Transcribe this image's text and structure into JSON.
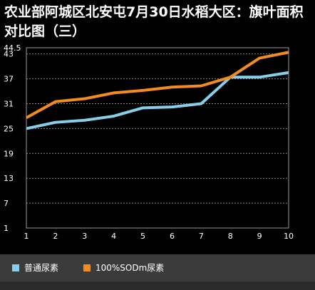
{
  "chart_data": {
    "type": "line",
    "title": "农业部阿城区北安屯7月30日水稻大区：旗叶面积对比图（三）",
    "x": [
      1,
      2,
      3,
      4,
      5,
      6,
      7,
      8,
      9,
      10
    ],
    "y_ticks": [
      1,
      7,
      13,
      19,
      25,
      31,
      37,
      43,
      44.5
    ],
    "ylim": [
      1,
      44.5
    ],
    "xlim": [
      1,
      10
    ],
    "grid": true,
    "legend": "bottom-left",
    "series": [
      {
        "name": "普通尿素",
        "color": "#87CEEB",
        "values": [
          25.0,
          26.5,
          27.0,
          28.0,
          30.0,
          30.2,
          31.0,
          37.4,
          37.4,
          38.5
        ]
      },
      {
        "name": "100%SODm尿素",
        "color": "#F28C1E",
        "values": [
          27.6,
          31.5,
          32.2,
          33.6,
          34.2,
          35.0,
          35.3,
          37.4,
          42.0,
          43.4
        ]
      }
    ]
  }
}
